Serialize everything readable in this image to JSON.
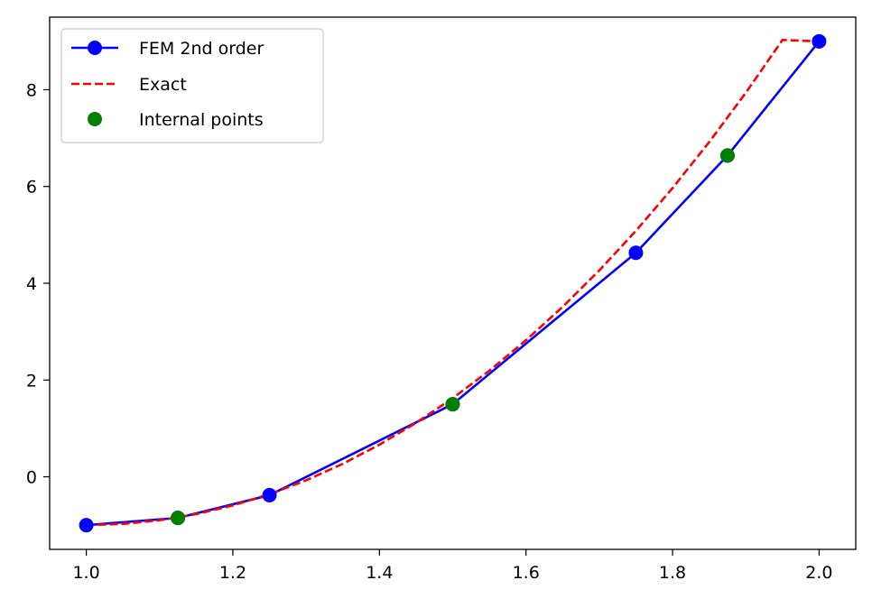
{
  "chart_data": {
    "type": "line",
    "title": "",
    "xlabel": "",
    "ylabel": "",
    "xlim": [
      0.95,
      2.05
    ],
    "ylim": [
      -1.5,
      9.5
    ],
    "xticks": [
      1.0,
      1.2,
      1.4,
      1.6,
      1.8,
      2.0
    ],
    "xtick_labels": [
      "1.0",
      "1.2",
      "1.4",
      "1.6",
      "1.8",
      "2.0"
    ],
    "yticks": [
      0,
      2,
      4,
      6,
      8
    ],
    "ytick_labels": [
      "0",
      "2",
      "4",
      "6",
      "8"
    ],
    "grid": false,
    "legend_position": "top-left",
    "series": [
      {
        "name": "FEM 2nd order",
        "style": "solid-line-with-markers",
        "color": "#0000ff",
        "x": [
          1.0,
          1.125,
          1.25,
          1.5,
          1.75,
          1.875,
          2.0
        ],
        "y": [
          -1.0,
          -0.85,
          -0.38,
          1.5,
          4.63,
          6.64,
          9.0
        ]
      },
      {
        "name": "Exact",
        "style": "dashed-line",
        "color": "#ff0000",
        "x": [
          1.0,
          1.05,
          1.1,
          1.15,
          1.2,
          1.25,
          1.3,
          1.35,
          1.4,
          1.45,
          1.5,
          1.55,
          1.6,
          1.65,
          1.7,
          1.75,
          1.8,
          1.85,
          1.9,
          1.95,
          2.0
        ],
        "y": [
          -1.0,
          -0.974,
          -0.898,
          -0.771,
          -0.592,
          -0.359,
          -0.073,
          0.268,
          0.664,
          1.115,
          1.625,
          2.193,
          2.822,
          3.512,
          4.265,
          5.083,
          5.967,
          6.918,
          7.938,
          9.028,
          9.0
        ]
      },
      {
        "name": "Internal points",
        "style": "markers-only",
        "color": "#008000",
        "x": [
          1.125,
          1.5,
          1.875
        ],
        "y": [
          -0.85,
          1.5,
          6.64
        ]
      }
    ]
  }
}
